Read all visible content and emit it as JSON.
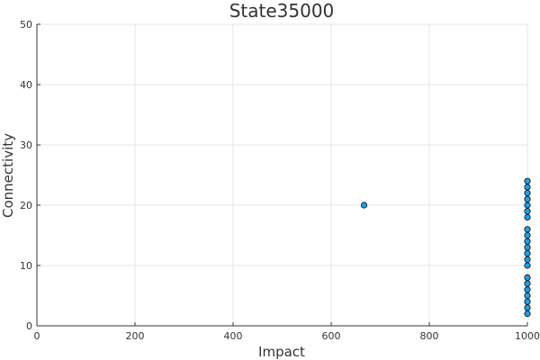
{
  "chart_data": {
    "type": "scatter",
    "title": "State35000",
    "xlabel": "Impact",
    "ylabel": "Connectivity",
    "xlim": [
      0,
      1000
    ],
    "ylim": [
      0,
      50
    ],
    "xticks": [
      0,
      200,
      400,
      600,
      800,
      1000
    ],
    "yticks": [
      0,
      10,
      20,
      30,
      40,
      50
    ],
    "grid": true,
    "legend": "none",
    "marker_color": "#1f9fe6",
    "series": [
      {
        "points": [
          {
            "x": 667,
            "y": 20
          },
          {
            "x": 1000,
            "y": 2
          },
          {
            "x": 1000,
            "y": 3
          },
          {
            "x": 1000,
            "y": 4
          },
          {
            "x": 1000,
            "y": 5
          },
          {
            "x": 1000,
            "y": 6
          },
          {
            "x": 1000,
            "y": 7
          },
          {
            "x": 1000,
            "y": 8
          },
          {
            "x": 1000,
            "y": 10
          },
          {
            "x": 1000,
            "y": 11
          },
          {
            "x": 1000,
            "y": 12
          },
          {
            "x": 1000,
            "y": 13
          },
          {
            "x": 1000,
            "y": 14
          },
          {
            "x": 1000,
            "y": 15
          },
          {
            "x": 1000,
            "y": 16
          },
          {
            "x": 1000,
            "y": 18
          },
          {
            "x": 1000,
            "y": 19
          },
          {
            "x": 1000,
            "y": 20
          },
          {
            "x": 1000,
            "y": 21
          },
          {
            "x": 1000,
            "y": 22
          },
          {
            "x": 1000,
            "y": 23
          },
          {
            "x": 1000,
            "y": 24
          }
        ]
      }
    ]
  }
}
